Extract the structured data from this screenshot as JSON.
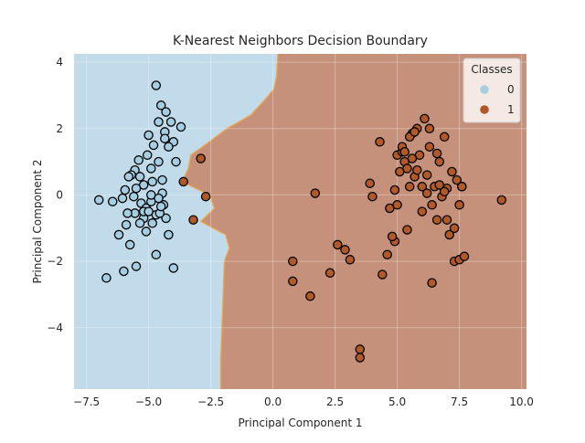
{
  "chart_data": {
    "type": "scatter",
    "title": "K-Nearest Neighbors Decision Boundary",
    "xlabel": "Principal Component 1",
    "ylabel": "Principal Component 2",
    "xlim": [
      -8.0,
      10.2
    ],
    "ylim": [
      -5.85,
      4.25
    ],
    "xticks": [
      -7.5,
      -5.0,
      -2.5,
      0.0,
      2.5,
      5.0,
      7.5,
      10.0
    ],
    "xtick_labels": [
      "−7.5",
      "−5.0",
      "−2.5",
      "0.0",
      "2.5",
      "5.0",
      "7.5",
      "10.0"
    ],
    "yticks": [
      -4,
      -2,
      0,
      2,
      4
    ],
    "ytick_labels": [
      "−4",
      "−2",
      "0",
      "2",
      "4"
    ],
    "grid": true,
    "legend": {
      "title": "Classes",
      "placement": "top-right",
      "entries": [
        "0",
        "1"
      ]
    },
    "colors": {
      "region_0": "#c2dbea",
      "region_1": "#c6917a",
      "point_0": "#a6cee3",
      "point_1": "#b15928",
      "edge": "#000000",
      "boundary": "#f2a23c"
    },
    "decision_boundary": {
      "y": [
        4.25,
        3.6,
        3.2,
        2.8,
        2.4,
        2.0,
        1.6,
        1.2,
        0.8,
        0.4,
        0.0,
        -0.4,
        -0.8,
        -1.2,
        -1.6,
        -2.0,
        -3.0,
        -4.0,
        -5.0,
        -5.85
      ],
      "x": [
        0.2,
        0.15,
        0.05,
        -0.4,
        -0.9,
        -1.85,
        -2.55,
        -3.3,
        -3.4,
        -3.65,
        -2.55,
        -2.35,
        -2.9,
        -1.9,
        -1.75,
        -1.95,
        -2.0,
        -2.05,
        -2.1,
        -2.1
      ]
    },
    "series": [
      {
        "name": "0",
        "x": [
          -4.7,
          -4.5,
          -4.3,
          -4.1,
          -4.6,
          -4.35,
          -4.0,
          -3.7,
          -4.2,
          -4.35,
          -4.8,
          -5.0,
          -4.6,
          -3.9,
          -5.05,
          -5.4,
          -4.9,
          -5.55,
          -5.7,
          -5.8,
          -5.35,
          -4.85,
          -4.45,
          -5.2,
          -5.5,
          -4.45,
          -5.95,
          -6.05,
          -5.6,
          -5.3,
          -4.9,
          -4.6,
          -4.4,
          -5.1,
          -5.55,
          -5.85,
          -6.45,
          -7.0,
          -5.2,
          -4.7,
          -4.3,
          -5.9,
          -5.35,
          -4.85,
          -4.55,
          -5.1,
          -6.2,
          -5.75,
          -6.7,
          -6.0,
          -5.5,
          -4.7,
          -4.0,
          -5.2,
          -4.9,
          -5.0,
          -4.5,
          -4.2
        ],
        "y": [
          3.3,
          2.7,
          2.5,
          2.2,
          2.2,
          1.9,
          1.6,
          2.05,
          1.45,
          1.7,
          1.5,
          1.8,
          1.0,
          1.0,
          1.2,
          1.05,
          0.8,
          0.75,
          0.6,
          0.55,
          0.55,
          0.4,
          0.45,
          0.3,
          0.2,
          0.05,
          0.15,
          -0.1,
          -0.05,
          -0.25,
          -0.2,
          -0.1,
          -0.3,
          -0.4,
          -0.55,
          -0.55,
          -0.2,
          -0.15,
          -0.7,
          -0.6,
          -0.7,
          -0.9,
          -0.85,
          -0.85,
          -0.55,
          -1.1,
          -1.2,
          -1.5,
          -2.5,
          -2.3,
          -2.15,
          -1.8,
          -2.2,
          -0.5,
          0.0,
          -0.5,
          -0.35,
          -1.2
        ]
      },
      {
        "name": "1",
        "x": [
          -2.9,
          -3.6,
          -2.7,
          -3.2,
          1.7,
          0.8,
          0.8,
          2.6,
          2.9,
          2.3,
          1.5,
          3.1,
          3.5,
          3.5,
          3.9,
          4.0,
          4.3,
          4.4,
          4.6,
          4.7,
          4.9,
          5.0,
          5.1,
          5.2,
          5.3,
          5.4,
          5.5,
          5.6,
          5.7,
          5.8,
          5.9,
          6.0,
          6.1,
          6.2,
          6.3,
          6.4,
          6.5,
          6.6,
          6.7,
          6.8,
          6.9,
          7.0,
          7.1,
          7.2,
          7.3,
          7.4,
          7.5,
          7.6,
          7.7,
          9.2,
          5.5,
          5.7,
          6.3,
          6.6,
          7.0,
          5.2,
          4.9,
          5.3,
          6.9,
          7.6,
          7.5,
          6.4,
          6.0,
          5.8,
          5.6,
          7.3,
          5.0,
          4.8,
          6.7,
          5.4,
          6.2
        ],
        "y": [
          1.1,
          0.4,
          -0.05,
          -0.75,
          0.05,
          -2.0,
          -2.6,
          -1.5,
          -1.65,
          -2.35,
          -3.05,
          -1.95,
          -4.65,
          -4.9,
          0.35,
          -0.05,
          1.6,
          -2.4,
          -1.8,
          -0.4,
          -1.4,
          1.2,
          0.7,
          1.3,
          1.0,
          0.8,
          0.25,
          1.85,
          0.55,
          2.0,
          1.2,
          0.25,
          2.3,
          0.6,
          1.45,
          -2.65,
          0.25,
          -0.75,
          0.3,
          -0.05,
          1.75,
          -0.75,
          -1.2,
          0.7,
          -2.0,
          0.45,
          -1.95,
          0.25,
          -1.85,
          -0.15,
          1.75,
          1.9,
          2.0,
          1.25,
          0.2,
          1.45,
          0.15,
          1.3,
          0.1,
          0.25,
          -0.3,
          -0.3,
          -0.5,
          0.75,
          1.1,
          -1.0,
          -0.3,
          -1.25,
          1.0,
          -1.05,
          0.05
        ]
      }
    ]
  }
}
